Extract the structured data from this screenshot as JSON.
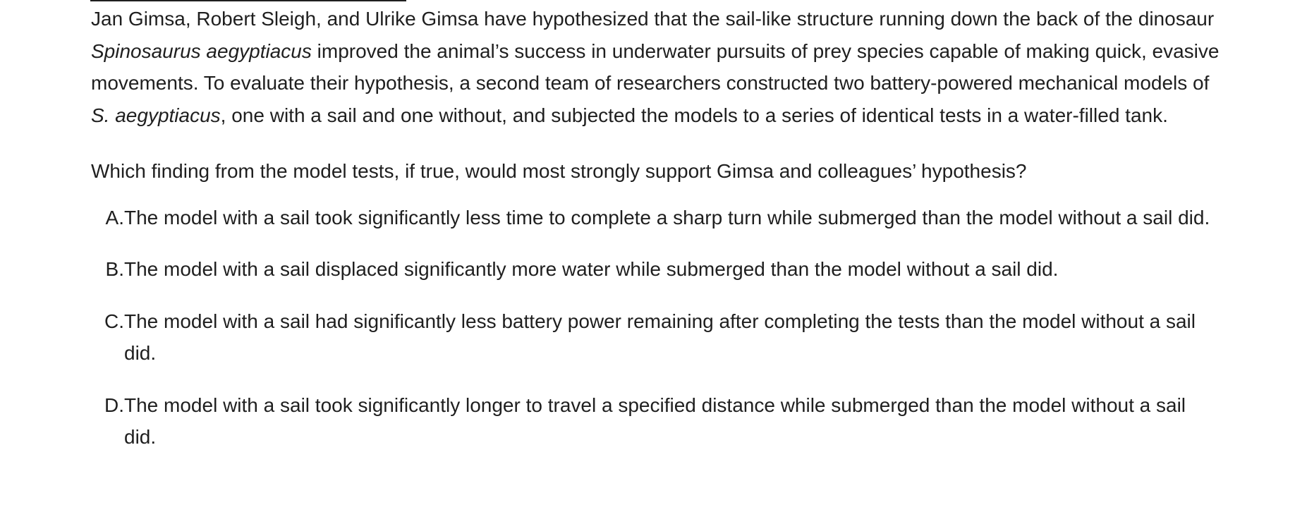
{
  "passage": {
    "part1": "Jan Gimsa, Robert Sleigh, and Ulrike Gimsa have hypothesized that the sail-like structure running down the back of the dinosaur ",
    "italic1": "Spinosaurus aegyptiacus",
    "part2": " improved the animal’s success in underwater pursuits of prey species capable of making quick, evasive movements. To evaluate their hypothesis, a second team of researchers constructed two battery-powered mechanical models of ",
    "italic2": "S. aegyptiacus",
    "part3": ", one with a sail and one without, and subjected the models to a series of identical tests in a water-filled tank."
  },
  "question": "Which finding from the model tests, if true, would most strongly support Gimsa and colleagues’ hypothesis?",
  "choices": [
    {
      "letter": "A.",
      "text": "The model with a sail took significantly less time to complete a sharp turn while submerged than the model without a sail did."
    },
    {
      "letter": "B.",
      "text": "The model with a sail displaced significantly more water while submerged than the model without a sail did."
    },
    {
      "letter": "C.",
      "text": "The model with a sail had significantly less battery power remaining after completing the tests than the model without a sail did."
    },
    {
      "letter": "D.",
      "text": "The model with a sail took significantly longer to travel a specified distance while submerged than the model without a sail did."
    }
  ]
}
